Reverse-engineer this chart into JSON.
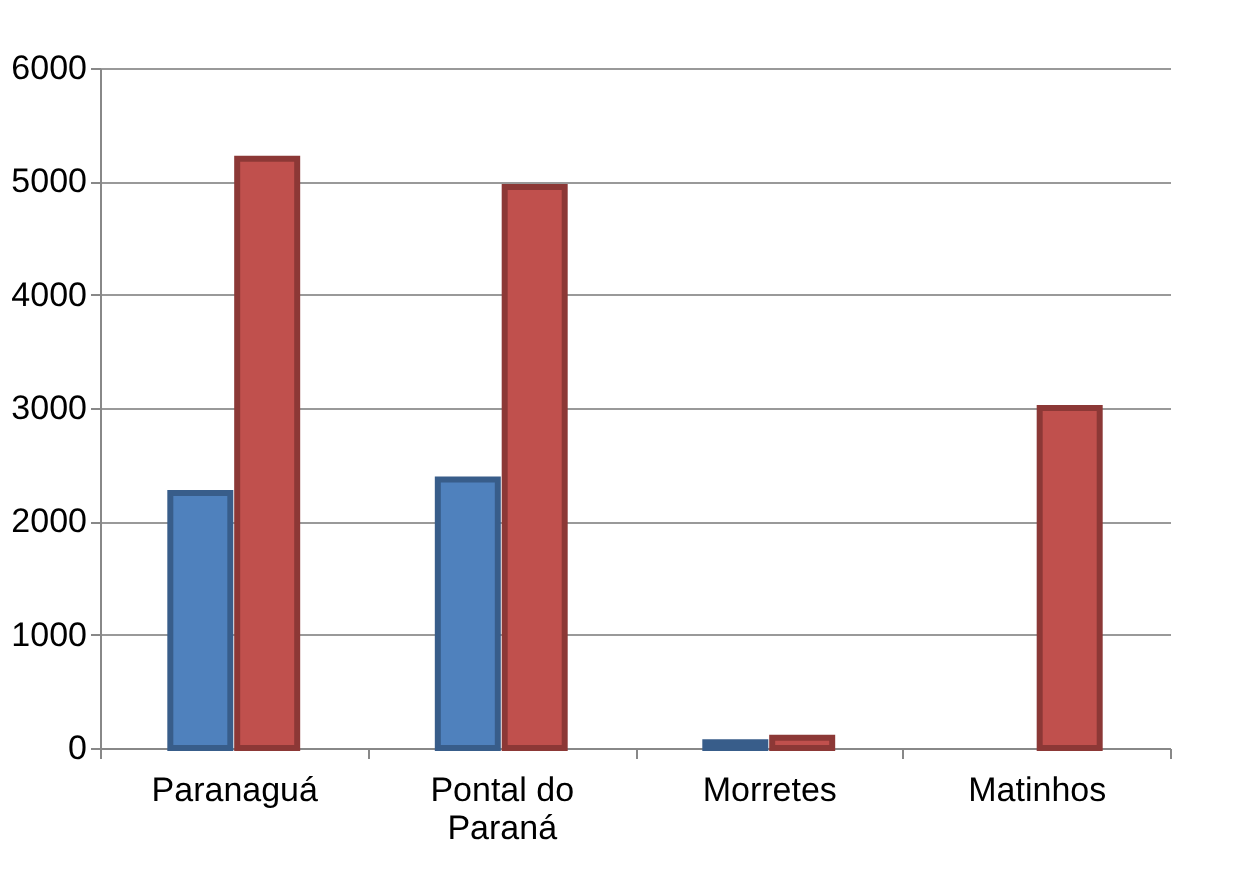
{
  "chart_data": {
    "type": "bar",
    "categories": [
      "Paranaguá",
      "Pontal do Paraná",
      "Morretes",
      "Matinhos"
    ],
    "series": [
      {
        "color": "#4f81bd",
        "values": [
          2250,
          2370,
          50,
          null
        ]
      },
      {
        "color": "#c0504d",
        "values": [
          5200,
          4950,
          90,
          3000
        ]
      }
    ],
    "ylim": [
      0,
      6000
    ],
    "yticks": [
      0,
      1000,
      2000,
      3000,
      4000,
      5000,
      6000
    ],
    "grid": "y"
  }
}
